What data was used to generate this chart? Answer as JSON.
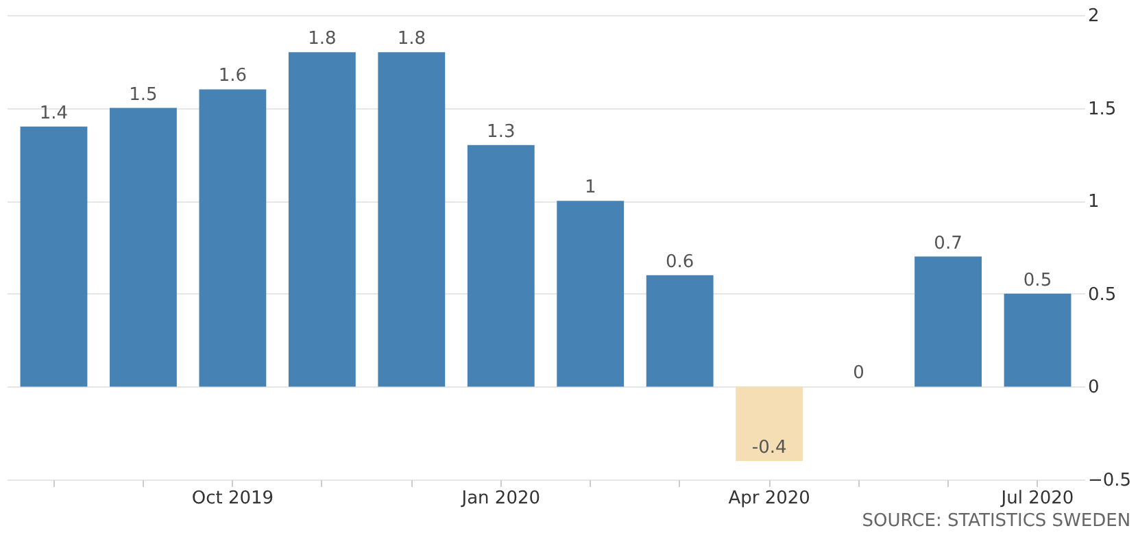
{
  "chart_data": {
    "type": "bar",
    "categories": [
      null,
      null,
      "Oct 2019",
      null,
      null,
      "Jan 2020",
      null,
      null,
      "Apr 2020",
      null,
      null,
      "Jul 2020"
    ],
    "values": [
      1.4,
      1.5,
      1.6,
      1.8,
      1.8,
      1.3,
      1,
      0.6,
      -0.4,
      0,
      0.7,
      0.5
    ],
    "colors": [
      "#4682b4",
      "#4682b4",
      "#4682b4",
      "#4682b4",
      "#4682b4",
      "#4682b4",
      "#4682b4",
      "#4682b4",
      "#f5deb3",
      "#4682b4",
      "#4682b4",
      "#4682b4"
    ],
    "ylim": [
      -0.5,
      2
    ],
    "yticks": [
      -0.5,
      0,
      0.5,
      1,
      1.5,
      2
    ],
    "grid": "y",
    "data_labels": true,
    "annotations": [
      "SOURCE: STATISTICS SWEDEN"
    ]
  }
}
